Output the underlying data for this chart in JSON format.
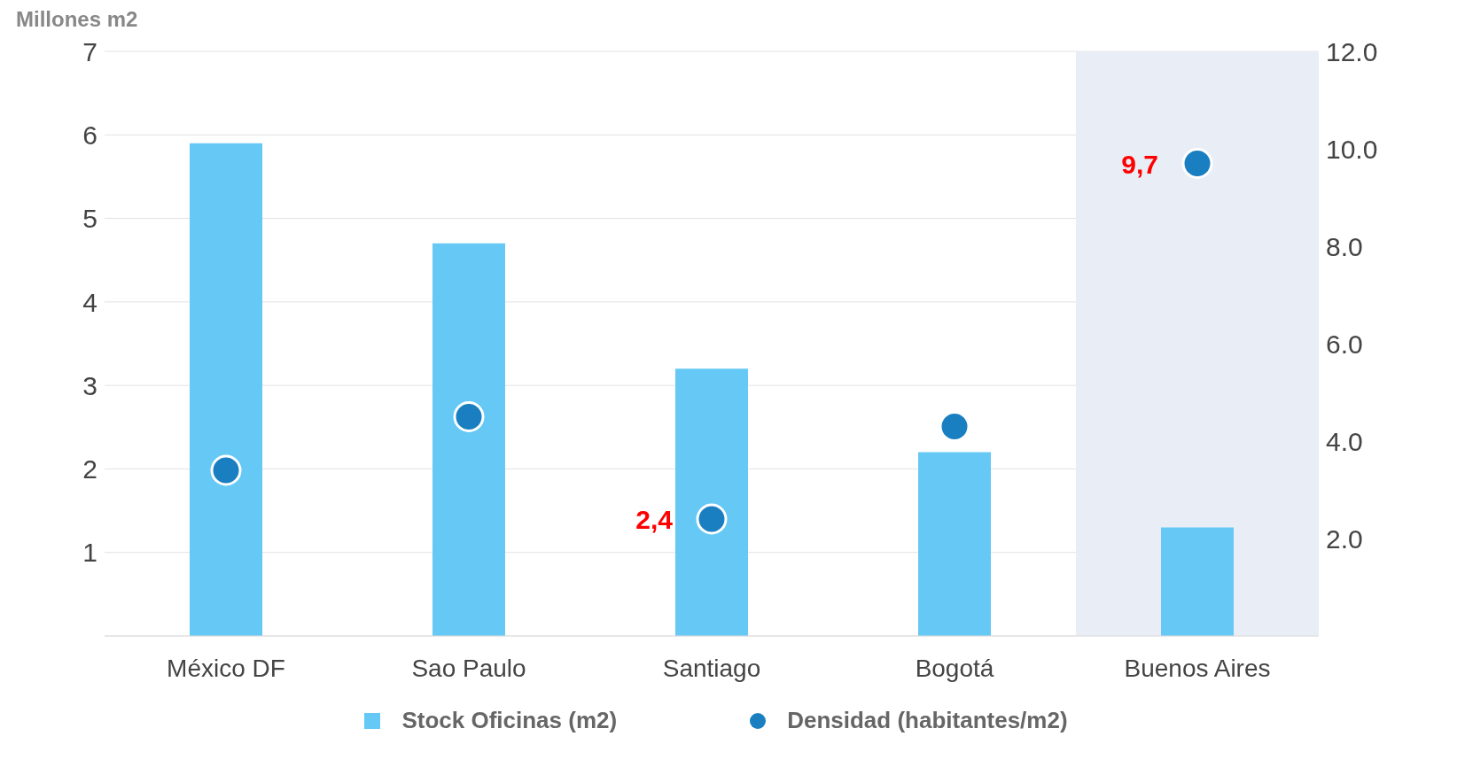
{
  "chart_data": {
    "type": "bar",
    "ylabel": "Millones m2",
    "categories": [
      "México DF",
      "Sao Paulo",
      "Santiago",
      "Bogotá",
      "Buenos Aires"
    ],
    "series": [
      {
        "name": "Stock Oficinas (m2)",
        "color": "#66c8f5",
        "values": [
          5.9,
          4.7,
          3.2,
          2.2,
          1.3
        ]
      },
      {
        "name": "Densidad (habitantes/m2)",
        "type": "scatter",
        "axis": "y2",
        "color": "#1a7fc1",
        "marker": "circle",
        "values": [
          3.4,
          4.5,
          2.4,
          4.3,
          9.7
        ],
        "value_labels": [
          null,
          null,
          "2,4",
          null,
          "9,7"
        ]
      }
    ],
    "ylim": [
      0,
      7
    ],
    "yticks": [
      {
        "value": 0,
        "label": null
      },
      1,
      2,
      3,
      4,
      5,
      6,
      7
    ],
    "y2lim": [
      0,
      12
    ],
    "y2ticks": [
      {
        "value": 0,
        "label": null
      },
      {
        "value": 2,
        "label": "2.0"
      },
      {
        "value": 4,
        "label": "4.0"
      },
      {
        "value": 6,
        "label": "6.0"
      },
      {
        "value": 8,
        "label": "8.0"
      },
      {
        "value": 10,
        "label": "10.0"
      },
      {
        "value": 12,
        "label": "12.0"
      }
    ],
    "bands": [
      {
        "axis": "x",
        "from": "Buenos Aires",
        "to": "Buenos Aires",
        "color": "#e9eef6"
      }
    ],
    "grid": "y",
    "legend": "bottom"
  }
}
